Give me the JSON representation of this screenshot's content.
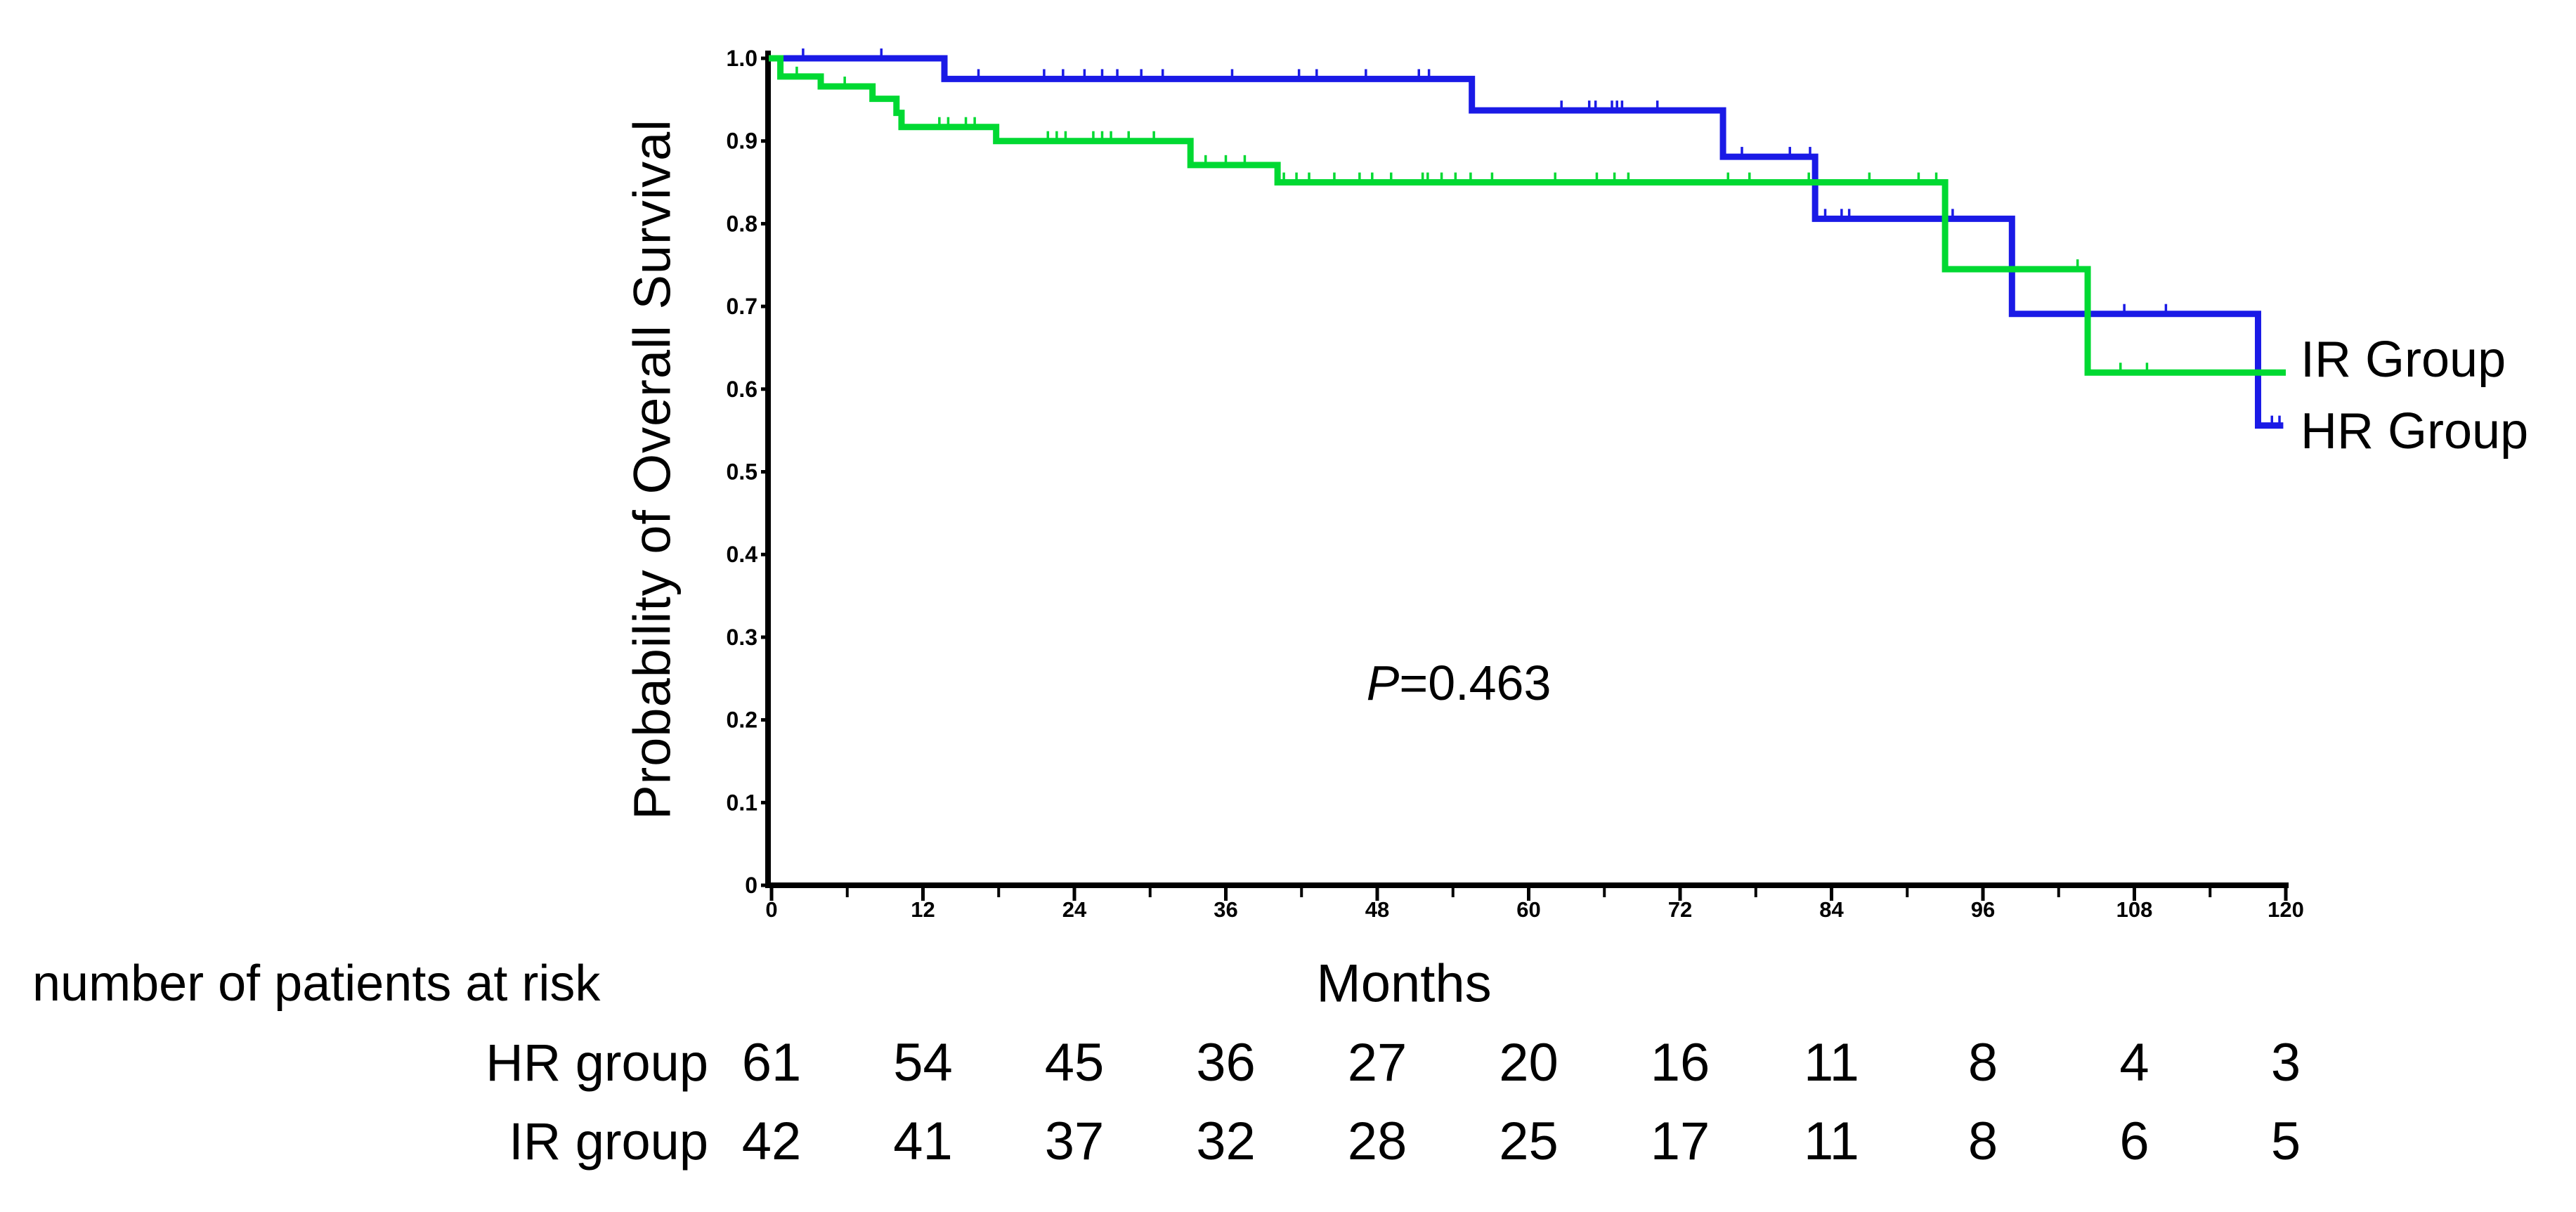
{
  "figure": {
    "background": "#ffffff"
  },
  "y_axis": {
    "title": "Probability of Overall Survival",
    "ticks": [
      {
        "label": "1.0",
        "value": 1.0
      },
      {
        "label": "0.9",
        "value": 0.9
      },
      {
        "label": "0.8",
        "value": 0.8
      },
      {
        "label": "0.7",
        "value": 0.7
      },
      {
        "label": "0.6",
        "value": 0.6
      },
      {
        "label": "0.5",
        "value": 0.5
      },
      {
        "label": "0.4",
        "value": 0.4
      },
      {
        "label": "0.3",
        "value": 0.3
      },
      {
        "label": "0.2",
        "value": 0.2
      },
      {
        "label": "0.1",
        "value": 0.1
      },
      {
        "label": "0",
        "value": 0.0
      }
    ]
  },
  "x_axis": {
    "title": "Months",
    "ticks": [
      {
        "label": "0",
        "value": 0
      },
      {
        "label": "12",
        "value": 12
      },
      {
        "label": "24",
        "value": 24
      },
      {
        "label": "36",
        "value": 36
      },
      {
        "label": "48",
        "value": 48
      },
      {
        "label": "60",
        "value": 60
      },
      {
        "label": "72",
        "value": 72
      },
      {
        "label": "84",
        "value": 84
      },
      {
        "label": "96",
        "value": 96
      },
      {
        "label": "108",
        "value": 108
      },
      {
        "label": "120",
        "value": 120
      }
    ],
    "minor_tick_values": [
      6,
      18,
      30,
      42,
      54,
      66,
      78,
      90,
      102,
      114
    ]
  },
  "annotation": {
    "text": "P=0.463",
    "p_symbol": "P",
    "rest": "=0.463"
  },
  "legend": [
    {
      "label": "IR Group",
      "color": "#00d932"
    },
    {
      "label": "HR Group",
      "color": "#1a1ae6"
    }
  ],
  "at_risk": {
    "header": "number of patients at risk",
    "rows": [
      {
        "label": "HR group",
        "values": [
          61,
          54,
          45,
          36,
          27,
          20,
          16,
          11,
          8,
          4,
          3
        ]
      },
      {
        "label": "IR group",
        "values": [
          42,
          41,
          37,
          32,
          28,
          25,
          17,
          11,
          8,
          6,
          5
        ]
      }
    ]
  },
  "chart_data": {
    "type": "line",
    "subtype": "kaplan-meier-step",
    "title": "",
    "xlabel": "Months",
    "ylabel": "Probability of Overall Survival",
    "xlim": [
      0,
      120
    ],
    "ylim": [
      0.0,
      1.0
    ],
    "grid": false,
    "p_value": "P=0.463",
    "axis_color": "#000000",
    "series": [
      {
        "name": "HR Group",
        "color": "#1a1ae6",
        "n_at_start": 61,
        "steps": [
          [
            0,
            1.0
          ],
          [
            13.7,
            0.975
          ],
          [
            55.5,
            0.937
          ],
          [
            75.4,
            0.881
          ],
          [
            82.7,
            0.806
          ],
          [
            98.3,
            0.691
          ],
          [
            117.8,
            0.556
          ]
        ],
        "end_time": 119.8,
        "censor_times": [
          2.5,
          8.7,
          16.4,
          21.6,
          23.1,
          24.8,
          26.2,
          27.4,
          29.3,
          31.0,
          36.5,
          41.8,
          43.2,
          47.1,
          51.3,
          52.1,
          62.6,
          64.8,
          65.3,
          66.6,
          67.0,
          67.4,
          70.2,
          76.9,
          80.7,
          82.3,
          83.5,
          84.8,
          85.4,
          93.6,
          107.2,
          110.5,
          118.9,
          119.5
        ]
      },
      {
        "name": "IR Group",
        "color": "#00d932",
        "n_at_start": 42,
        "steps": [
          [
            0,
            1.0
          ],
          [
            0.7,
            0.978
          ],
          [
            3.9,
            0.966
          ],
          [
            8.0,
            0.951
          ],
          [
            9.9,
            0.934
          ],
          [
            10.3,
            0.917
          ],
          [
            17.8,
            0.9
          ],
          [
            33.2,
            0.871
          ],
          [
            40.1,
            0.85
          ],
          [
            93.0,
            0.745
          ],
          [
            104.3,
            0.62
          ]
        ],
        "end_time": 120.0,
        "censor_times": [
          2.0,
          5.8,
          13.3,
          14.0,
          15.4,
          16.1,
          21.9,
          22.6,
          23.3,
          25.5,
          26.2,
          26.9,
          28.3,
          30.3,
          34.4,
          36.0,
          37.5,
          40.6,
          41.6,
          42.6,
          44.6,
          46.6,
          47.6,
          49.1,
          51.6,
          52.0,
          53.1,
          54.2,
          55.4,
          57.1,
          62.1,
          65.4,
          66.8,
          67.9,
          75.8,
          77.5,
          82.2,
          87.0,
          90.9,
          92.3,
          103.5,
          106.9,
          109.0
        ]
      }
    ]
  }
}
